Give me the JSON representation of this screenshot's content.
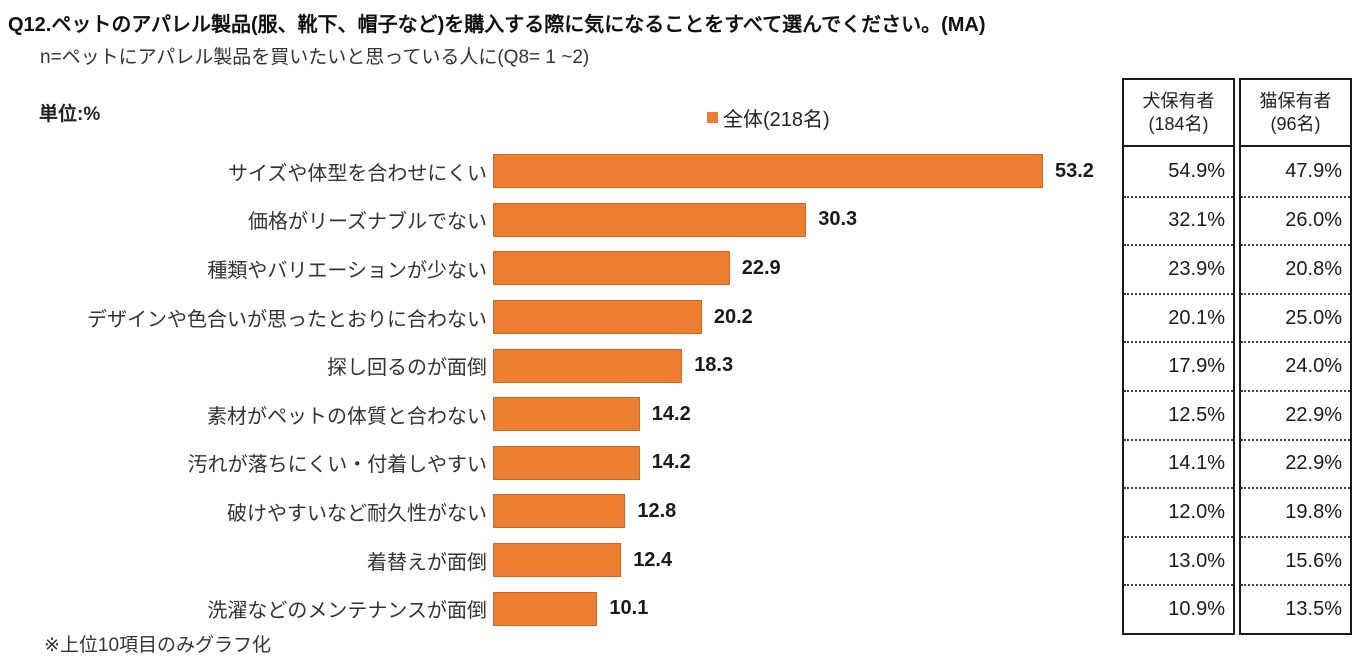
{
  "title": "Q12.ペットのアパレル製品(服、靴下、帽子など)を購入する際に気になることをすべて選んでください。(MA)",
  "subtitle": "n=ペットにアパレル製品を買いたいと思っている人に(Q8= 1 ~2)",
  "unit_label": "単位:%",
  "legend": {
    "label": "全体(218名)",
    "color": "#ED7D31"
  },
  "note": "※上位10項目のみグラフ化",
  "side_table": {
    "columns": [
      {
        "id": "dog-owner-column",
        "header_lines": [
          "犬保有者",
          "(184名)"
        ],
        "values": [
          "54.9%",
          "32.1%",
          "23.9%",
          "20.1%",
          "17.9%",
          "12.5%",
          "14.1%",
          "12.0%",
          "13.0%",
          "10.9%"
        ]
      },
      {
        "id": "cat-owner-column",
        "header_lines": [
          "猫保有者",
          "(96名)"
        ],
        "values": [
          "47.9%",
          "26.0%",
          "20.8%",
          "25.0%",
          "24.0%",
          "22.9%",
          "22.9%",
          "19.8%",
          "15.6%",
          "13.5%"
        ]
      }
    ]
  },
  "chart_data": {
    "type": "bar",
    "orientation": "horizontal",
    "title": "Q12.ペットのアパレル製品(服、靴下、帽子など)を購入する際に気になることをすべて選んでください。(MA)",
    "subtitle": "n=ペットにアパレル製品を買いたいと思っている人に(Q8= 1 ~2)",
    "unit": "%",
    "bar_color": "#ED7D31",
    "legend_position": "top",
    "grid": false,
    "xlim": [
      0,
      56
    ],
    "categories": [
      "サイズや体型を合わせにくい",
      "価格がリーズナブルでない",
      "種類やバリエーションが少ない",
      "デザインや色合いが思ったとおりに合わない",
      "探し回るのが面倒",
      "素材がペットの体質と合わない",
      "汚れが落ちにくい・付着しやすい",
      "破けやすいなど耐久性がない",
      "着替えが面倒",
      "洗濯などのメンテナンスが面倒"
    ],
    "series": [
      {
        "name": "全体(218名)",
        "shown_as": "bars",
        "values": [
          53.2,
          30.3,
          22.9,
          20.2,
          18.3,
          14.2,
          14.2,
          12.8,
          12.4,
          10.1
        ]
      },
      {
        "name": "犬保有者(184名)",
        "shown_as": "table",
        "values": [
          54.9,
          32.1,
          23.9,
          20.1,
          17.9,
          12.5,
          14.1,
          12.0,
          13.0,
          10.9
        ]
      },
      {
        "name": "猫保有者(96名)",
        "shown_as": "table",
        "values": [
          47.9,
          26.0,
          20.8,
          25.0,
          24.0,
          22.9,
          22.9,
          19.8,
          15.6,
          13.5
        ]
      }
    ],
    "note": "※上位10項目のみグラフ化"
  }
}
